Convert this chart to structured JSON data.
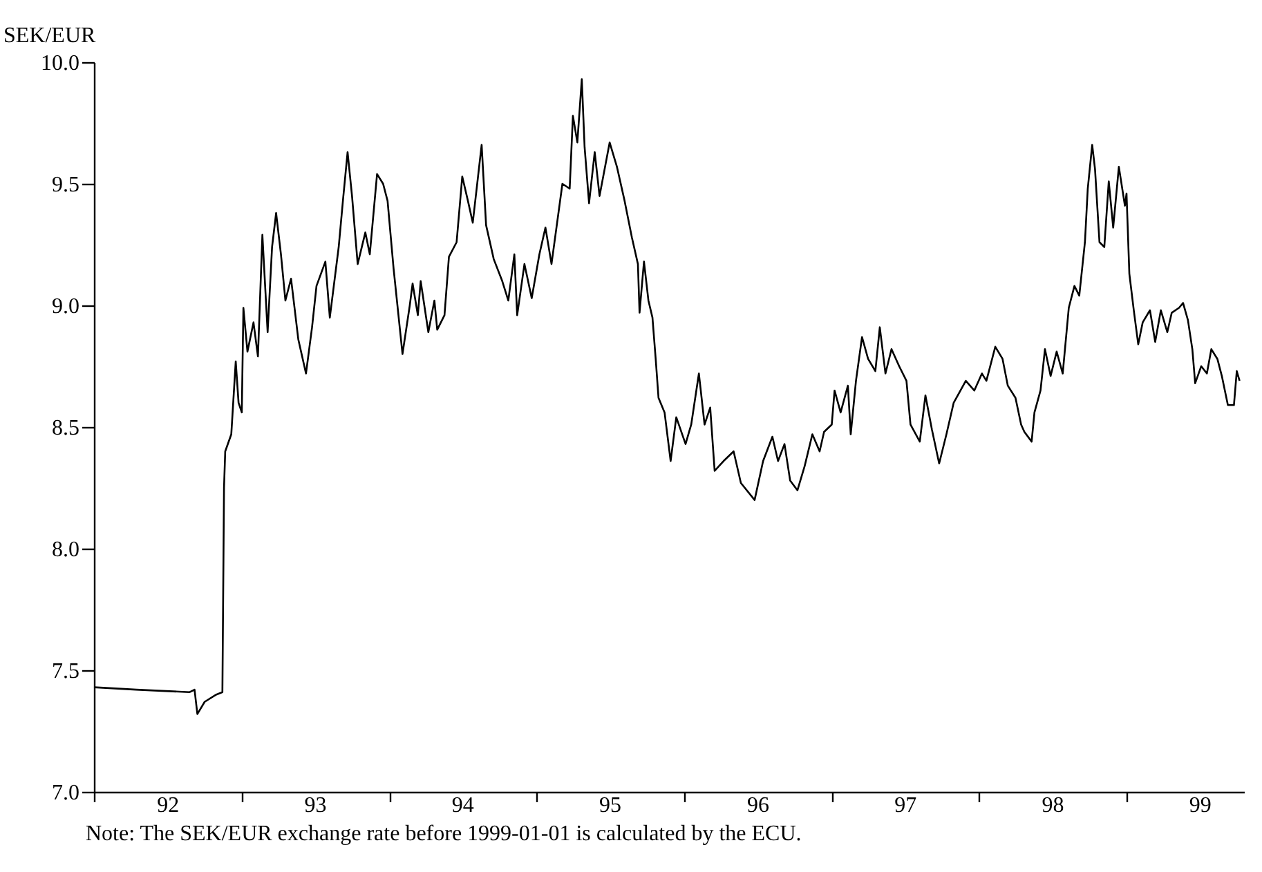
{
  "chart_data": {
    "type": "line",
    "ylabel": "SEK/EUR",
    "annotations": [
      "Note: The SEK/EUR exchange rate before 1999-01-01 is calculated by the ECU."
    ],
    "x": [
      "1992-01-01",
      "1992-04-15",
      "1992-08-25",
      "1992-09-06",
      "1992-09-13",
      "1992-10-01",
      "1992-10-30",
      "1992-11-14",
      "1992-11-18",
      "1992-11-21",
      "1992-12-06",
      "1992-12-17",
      "1992-12-24",
      "1993-01-01",
      "1993-01-05",
      "1993-01-15",
      "1993-01-30",
      "1993-02-10",
      "1993-02-21",
      "1993-03-06",
      "1993-03-17",
      "1993-03-27",
      "1993-04-08",
      "1993-04-19",
      "1993-05-03",
      "1993-05-21",
      "1993-06-09",
      "1993-06-24",
      "1993-07-05",
      "1993-07-27",
      "1993-08-07",
      "1993-08-29",
      "1993-09-09",
      "1993-09-20",
      "1993-10-01",
      "1993-10-15",
      "1993-11-03",
      "1993-11-14",
      "1993-12-02",
      "1993-12-17",
      "1993-12-28",
      "1994-01-12",
      "1994-02-03",
      "1994-02-21",
      "1994-02-28",
      "1994-03-13",
      "1994-03-20",
      "1994-04-08",
      "1994-04-23",
      "1994-04-30",
      "1994-05-18",
      "1994-05-29",
      "1994-06-17",
      "1994-07-01",
      "1994-07-15",
      "1994-07-27",
      "1994-08-18",
      "1994-08-29",
      "1994-09-17",
      "1994-10-08",
      "1994-10-23",
      "1994-11-07",
      "1994-11-14",
      "1994-12-02",
      "1994-12-20",
      "1995-01-08",
      "1995-01-23",
      "1995-02-07",
      "1995-03-06",
      "1995-03-24",
      "1995-04-01",
      "1995-04-12",
      "1995-04-23",
      "1995-04-30",
      "1995-05-11",
      "1995-05-25",
      "1995-06-06",
      "1995-07-01",
      "1995-07-19",
      "1995-08-07",
      "1995-08-25",
      "1995-09-09",
      "1995-09-13",
      "1995-09-24",
      "1995-10-05",
      "1995-10-15",
      "1995-10-23",
      "1995-10-30",
      "1995-11-14",
      "1995-11-29",
      "1995-12-13",
      "1996-01-05",
      "1996-01-19",
      "1996-02-07",
      "1996-02-21",
      "1996-03-06",
      "1996-03-17",
      "1996-04-08",
      "1996-05-03",
      "1996-05-21",
      "1996-06-24",
      "1996-07-15",
      "1996-08-07",
      "1996-08-21",
      "1996-09-06",
      "1996-09-20",
      "1996-10-08",
      "1996-10-26",
      "1996-11-14",
      "1996-12-02",
      "1996-12-13",
      "1997-01-01",
      "1997-01-08",
      "1997-01-23",
      "1997-02-10",
      "1997-02-17",
      "1997-03-02",
      "1997-03-17",
      "1997-04-01",
      "1997-04-19",
      "1997-04-30",
      "1997-05-14",
      "1997-05-29",
      "1997-06-17",
      "1997-07-05",
      "1997-07-15",
      "1997-08-07",
      "1997-08-21",
      "1997-09-06",
      "1997-09-24",
      "1997-10-12",
      "1997-10-30",
      "1997-11-29",
      "1997-12-20",
      "1998-01-08",
      "1998-01-19",
      "1998-02-10",
      "1998-02-28",
      "1998-03-13",
      "1998-04-01",
      "1998-04-15",
      "1998-04-23",
      "1998-05-11",
      "1998-05-18",
      "1998-06-02",
      "1998-06-13",
      "1998-06-27",
      "1998-07-12",
      "1998-07-27",
      "1998-08-11",
      "1998-08-25",
      "1998-09-06",
      "1998-09-20",
      "1998-09-27",
      "1998-10-08",
      "1998-10-15",
      "1998-10-26",
      "1998-11-07",
      "1998-11-18",
      "1998-11-29",
      "1998-12-13",
      "1998-12-28",
      "1999-01-01",
      "1999-01-08",
      "1999-01-19",
      "1999-01-30",
      "1999-02-10",
      "1999-02-28",
      "1999-03-13",
      "1999-03-27",
      "1999-04-12",
      "1999-04-23",
      "1999-05-11",
      "1999-05-21",
      "1999-06-02",
      "1999-06-13",
      "1999-06-20",
      "1999-07-05",
      "1999-07-19",
      "1999-07-30",
      "1999-08-14",
      "1999-08-25",
      "1999-09-09",
      "1999-09-24",
      "1999-10-01",
      "1999-10-08"
    ],
    "values": [
      7.43,
      7.42,
      7.41,
      7.42,
      7.32,
      7.37,
      7.4,
      7.41,
      8.25,
      8.4,
      8.47,
      8.77,
      8.6,
      8.56,
      8.99,
      8.81,
      8.93,
      8.79,
      9.29,
      8.89,
      9.24,
      9.38,
      9.21,
      9.02,
      9.11,
      8.86,
      8.72,
      8.91,
      9.08,
      9.18,
      8.95,
      9.24,
      9.44,
      9.63,
      9.45,
      9.17,
      9.3,
      9.21,
      9.54,
      9.5,
      9.43,
      9.15,
      8.8,
      9.0,
      9.09,
      8.96,
      9.1,
      8.89,
      9.02,
      8.9,
      8.96,
      9.2,
      9.26,
      9.53,
      9.43,
      9.34,
      9.66,
      9.33,
      9.19,
      9.1,
      9.02,
      9.21,
      8.96,
      9.17,
      9.03,
      9.21,
      9.32,
      9.17,
      9.5,
      9.48,
      9.78,
      9.67,
      9.93,
      9.65,
      9.42,
      9.63,
      9.45,
      9.67,
      9.57,
      9.43,
      9.28,
      9.17,
      8.97,
      9.18,
      9.02,
      8.95,
      8.78,
      8.62,
      8.56,
      8.36,
      8.54,
      8.43,
      8.51,
      8.72,
      8.51,
      8.58,
      8.32,
      8.36,
      8.4,
      8.27,
      8.2,
      8.36,
      8.46,
      8.36,
      8.43,
      8.28,
      8.24,
      8.34,
      8.47,
      8.4,
      8.48,
      8.51,
      8.65,
      8.56,
      8.67,
      8.47,
      8.69,
      8.87,
      8.78,
      8.73,
      8.91,
      8.72,
      8.82,
      8.75,
      8.69,
      8.51,
      8.44,
      8.63,
      8.49,
      8.35,
      8.47,
      8.6,
      8.69,
      8.65,
      8.72,
      8.69,
      8.83,
      8.78,
      8.67,
      8.62,
      8.51,
      8.48,
      8.44,
      8.56,
      8.65,
      8.82,
      8.71,
      8.81,
      8.72,
      8.99,
      9.08,
      9.04,
      9.26,
      9.48,
      9.66,
      9.56,
      9.26,
      9.24,
      9.51,
      9.32,
      9.57,
      9.41,
      9.46,
      9.13,
      8.98,
      8.84,
      8.93,
      8.98,
      8.85,
      8.98,
      8.89,
      8.97,
      8.99,
      9.01,
      8.94,
      8.82,
      8.68,
      8.75,
      8.72,
      8.82,
      8.78,
      8.71,
      8.59,
      8.59,
      8.73,
      8.69
    ],
    "color": "#000000",
    "line_style": "solid",
    "marker": "none",
    "grid": false,
    "xlim": [
      "1992-01-01",
      "1999-10-19"
    ],
    "xticks": [
      {
        "value": "1992-01-01",
        "label": null
      },
      {
        "value": "1993-01-01",
        "label": null
      },
      {
        "value": "1994-01-01",
        "label": null
      },
      {
        "value": "1995-01-01",
        "label": null
      },
      {
        "value": "1996-01-01",
        "label": null
      },
      {
        "value": "1997-01-01",
        "label": null
      },
      {
        "value": "1998-01-01",
        "label": null
      },
      {
        "value": "1999-01-01",
        "label": null
      },
      {
        "value": "1992-07-01",
        "label": "92"
      },
      {
        "value": "1993-07-01",
        "label": "93"
      },
      {
        "value": "1994-07-01",
        "label": "94"
      },
      {
        "value": "1995-07-01",
        "label": "95"
      },
      {
        "value": "1996-07-01",
        "label": "96"
      },
      {
        "value": "1997-07-01",
        "label": "97"
      },
      {
        "value": "1998-07-01",
        "label": "98"
      },
      {
        "value": "1999-07-01",
        "label": "99"
      }
    ],
    "ylim": [
      7,
      10
    ],
    "yticks": [
      {
        "value": 7,
        "label": "7.0"
      },
      {
        "value": 7.5,
        "label": "7.5"
      },
      {
        "value": 8,
        "label": "8.0"
      },
      {
        "value": 8.5,
        "label": "8.5"
      },
      {
        "value": 9,
        "label": "9.0"
      },
      {
        "value": 9.5,
        "label": "9.5"
      },
      {
        "value": 10,
        "label": "10.0"
      }
    ]
  }
}
